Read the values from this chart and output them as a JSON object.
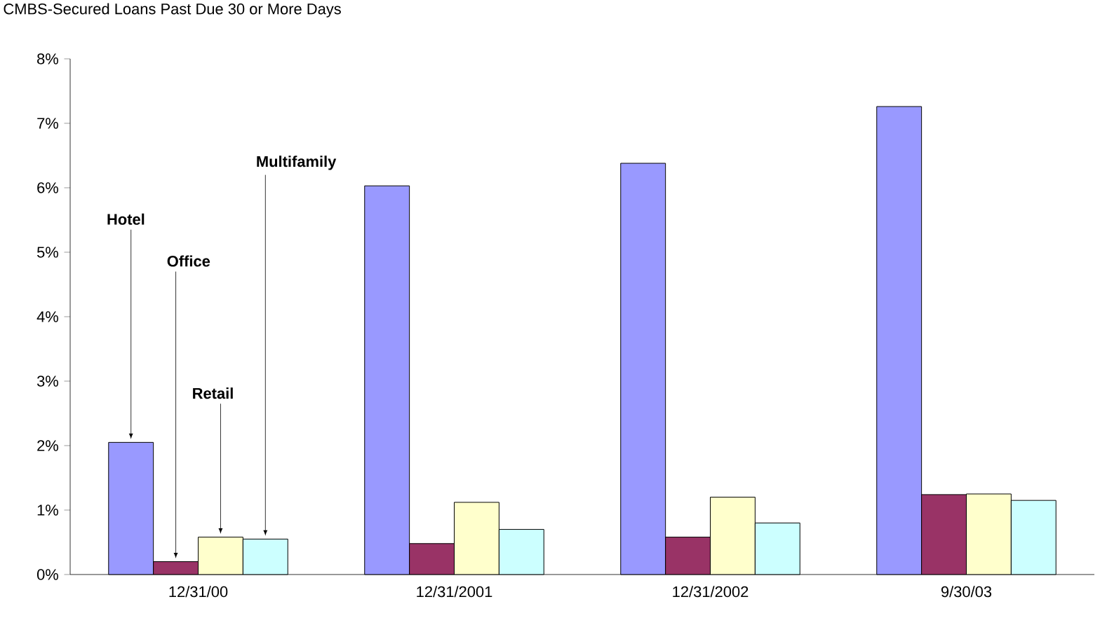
{
  "chart_data": {
    "type": "bar",
    "title": "CMBS-Secured Loans Past Due 30 or More Days",
    "categories": [
      "12/31/00",
      "12/31/2001",
      "12/31/2002",
      "9/30/03"
    ],
    "series": [
      {
        "name": "Hotel",
        "color": "#9999ff",
        "values": [
          2.05,
          6.03,
          6.38,
          7.26
        ]
      },
      {
        "name": "Office",
        "color": "#993366",
        "values": [
          0.2,
          0.48,
          0.58,
          1.24
        ]
      },
      {
        "name": "Retail",
        "color": "#ffffcc",
        "values": [
          0.58,
          1.12,
          1.2,
          1.25
        ]
      },
      {
        "name": "Multifamily",
        "color": "#ccffff",
        "values": [
          0.55,
          0.7,
          0.8,
          1.15
        ]
      }
    ],
    "ylim": [
      0,
      8
    ],
    "yticks": [
      {
        "value": 0,
        "label": "0%"
      },
      {
        "value": 1,
        "label": "1%"
      },
      {
        "value": 2,
        "label": "2%"
      },
      {
        "value": 3,
        "label": "3%"
      },
      {
        "value": 4,
        "label": "4%"
      },
      {
        "value": 5,
        "label": "5%"
      },
      {
        "value": 6,
        "label": "6%"
      },
      {
        "value": 7,
        "label": "7%"
      },
      {
        "value": 8,
        "label": "8%"
      }
    ],
    "grid": false,
    "legend": false
  }
}
